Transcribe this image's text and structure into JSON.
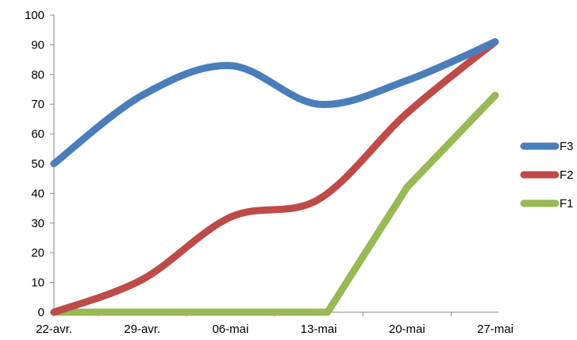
{
  "chart_data": {
    "type": "line",
    "title": "",
    "xlabel": "",
    "ylabel": "",
    "categories": [
      "22-avr.",
      "29-avr.",
      "06-mai",
      "13-mai",
      "20-mai",
      "27-mai"
    ],
    "ylim": [
      0,
      100
    ],
    "yticks": [
      0,
      10,
      20,
      30,
      40,
      50,
      60,
      70,
      80,
      90,
      100
    ],
    "grid": false,
    "smooth": true,
    "legend_position": "right",
    "series": [
      {
        "name": "F3",
        "color": "#4a7ebb",
        "values": [
          50,
          73,
          83,
          70,
          78,
          91
        ]
      },
      {
        "name": "F2",
        "color": "#be4b48",
        "values": [
          0,
          11,
          32,
          38,
          67,
          91
        ]
      },
      {
        "name": "F1",
        "color": "#98b954",
        "values": [
          0,
          0,
          0,
          0,
          42,
          73
        ],
        "x": [
          0,
          1,
          2,
          3.1,
          4,
          5
        ]
      }
    ]
  }
}
